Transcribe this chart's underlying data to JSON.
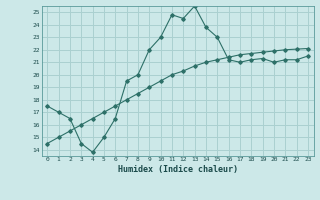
{
  "xlabel": "Humidex (Indice chaleur)",
  "background_color": "#cce8e8",
  "grid_color": "#aad0d0",
  "line_color": "#2d7068",
  "xlim": [
    -0.5,
    23.5
  ],
  "ylim": [
    13.5,
    25.5
  ],
  "yticks": [
    14,
    15,
    16,
    17,
    18,
    19,
    20,
    21,
    22,
    23,
    24,
    25
  ],
  "xticks": [
    0,
    1,
    2,
    3,
    4,
    5,
    6,
    7,
    8,
    9,
    10,
    11,
    12,
    13,
    14,
    15,
    16,
    17,
    18,
    19,
    20,
    21,
    22,
    23
  ],
  "line1_x": [
    0,
    1,
    2,
    3,
    4,
    5,
    6,
    7,
    8,
    9,
    10,
    11,
    12,
    13,
    14,
    15,
    16,
    17,
    18,
    19,
    20,
    21,
    22,
    23
  ],
  "line1_y": [
    14.5,
    15.0,
    15.5,
    16.0,
    16.5,
    17.0,
    17.5,
    18.0,
    18.5,
    19.0,
    19.5,
    20.0,
    20.3,
    20.7,
    21.0,
    21.2,
    21.4,
    21.6,
    21.7,
    21.8,
    21.9,
    22.0,
    22.05,
    22.1
  ],
  "line2_x": [
    0,
    1,
    2,
    3,
    4,
    5,
    6,
    7,
    8,
    9,
    10,
    11,
    12,
    13,
    14,
    15,
    16,
    17,
    18,
    19,
    20,
    21,
    22,
    23
  ],
  "line2_y": [
    17.5,
    17.0,
    16.5,
    14.5,
    13.8,
    15.0,
    16.5,
    19.5,
    20.0,
    22.0,
    23.0,
    24.8,
    24.5,
    25.5,
    23.8,
    23.0,
    21.2,
    21.0,
    21.2,
    21.3,
    21.0,
    21.2,
    21.2,
    21.5
  ]
}
